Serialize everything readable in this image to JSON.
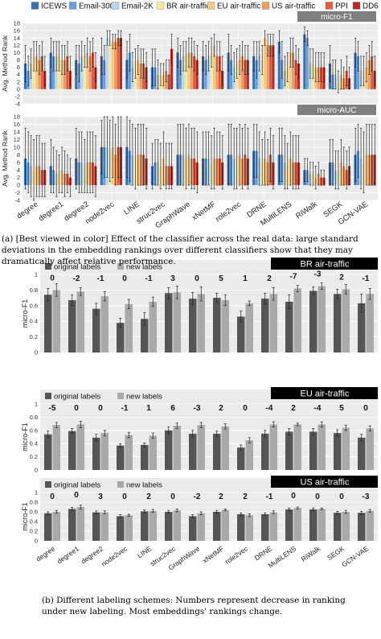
{
  "chart_data": [
    {
      "type": "bar",
      "title": "micro-F1",
      "ylabel": "Avg. Method Rank",
      "ylim": [
        -4,
        18
      ],
      "yticks": [
        -4,
        -2,
        0,
        2,
        4,
        6,
        8,
        10,
        12,
        14,
        16,
        18
      ],
      "grid": true,
      "legend_position": "top",
      "categories": [
        "degree",
        "degree1",
        "degree2",
        "node2vec",
        "LINE",
        "struc2vec",
        "GraphWave",
        "xNetMF",
        "role2vec",
        "DRNE",
        "MultiLENS",
        "RiWalk",
        "SEGK",
        "GCN-VAE"
      ],
      "series": [
        {
          "name": "ICEWS",
          "color": "#3a6fb0",
          "values": [
            7,
            10,
            8,
            9,
            8,
            6,
            10,
            9,
            10,
            9,
            13,
            15,
            7,
            10
          ],
          "errors": [
            5,
            4,
            4,
            5,
            5,
            5,
            4,
            4,
            5,
            4,
            3,
            2,
            5,
            4
          ]
        },
        {
          "name": "Email-300",
          "color": "#6b9fd4",
          "values": [
            5,
            9,
            7,
            8,
            10,
            6,
            8,
            8,
            8,
            8,
            8,
            14,
            4,
            9
          ],
          "errors": [
            4,
            4,
            5,
            4,
            5,
            5,
            4,
            4,
            4,
            5,
            5,
            2,
            4,
            4
          ]
        },
        {
          "name": "Email-2K",
          "color": "#b8d6ee",
          "values": [
            7,
            9,
            9,
            14,
            6,
            4,
            9,
            9,
            6,
            9,
            5,
            7,
            4,
            5
          ],
          "errors": [
            4,
            4,
            4,
            2,
            4,
            4,
            4,
            4,
            4,
            4,
            4,
            4,
            4,
            4
          ]
        },
        {
          "name": "BR air-traffic",
          "color": "#f4e7a3",
          "values": [
            9,
            9,
            9,
            14,
            7,
            4,
            9,
            10,
            7,
            8,
            6,
            7,
            2,
            5
          ],
          "errors": [
            4,
            4,
            3,
            2,
            4,
            3,
            4,
            4,
            4,
            4,
            4,
            4,
            3,
            4
          ]
        },
        {
          "name": "EU air-traffic",
          "color": "#f1c88c",
          "values": [
            9,
            8,
            10,
            13,
            8,
            4,
            10,
            12,
            8,
            14,
            10,
            6,
            4,
            6
          ],
          "errors": [
            4,
            4,
            4,
            2,
            4,
            3,
            4,
            3,
            4,
            2,
            4,
            4,
            4,
            4
          ]
        },
        {
          "name": "US air-traffic",
          "color": "#ea9f5e",
          "values": [
            8,
            8,
            9,
            13,
            7,
            5,
            10,
            9,
            9,
            12,
            10,
            6,
            3,
            8
          ],
          "errors": [
            4,
            4,
            4,
            2,
            4,
            3,
            4,
            4,
            4,
            3,
            4,
            4,
            3,
            4
          ]
        },
        {
          "name": "PPI",
          "color": "#e05a3c",
          "values": [
            9,
            9,
            10,
            14,
            7,
            4,
            9,
            9,
            8,
            12,
            8,
            6,
            5,
            9
          ],
          "errors": [
            4,
            4,
            4,
            2,
            4,
            4,
            4,
            4,
            4,
            3,
            4,
            4,
            4,
            4
          ]
        },
        {
          "name": "DD6",
          "color": "#b52a24",
          "values": [
            5,
            5,
            6,
            14,
            6,
            11,
            8,
            5,
            8,
            12,
            7,
            6,
            3,
            5
          ],
          "errors": [
            4,
            4,
            4,
            2,
            4,
            4,
            4,
            4,
            4,
            3,
            4,
            4,
            3,
            4
          ]
        }
      ]
    },
    {
      "type": "bar",
      "title": "micro-AUC",
      "ylabel": "Avg. Method Rank",
      "ylim": [
        -4,
        18
      ],
      "yticks": [
        -4,
        -2,
        0,
        2,
        4,
        6,
        8,
        10,
        12,
        14,
        16,
        18
      ],
      "grid": true,
      "categories": [
        "degree",
        "degree1",
        "degree2",
        "node2vec",
        "LINE",
        "struc2vec",
        "GraphWave",
        "xNetMF",
        "role2vec",
        "DRNE",
        "MultiLENS",
        "RiWalk",
        "SEGK",
        "GCN-VAE"
      ],
      "series": [
        {
          "name": "ICEWS",
          "color": "#3a6fb0",
          "values": [
            7,
            5,
            7,
            10,
            10,
            5,
            8,
            7,
            8,
            9,
            8,
            4,
            6,
            8
          ],
          "errors": [
            8,
            7,
            8,
            7,
            8,
            6,
            8,
            7,
            8,
            7,
            7,
            3,
            6,
            7
          ]
        },
        {
          "name": "Email-300",
          "color": "#6b9fd4",
          "values": [
            6,
            4,
            6,
            10,
            9,
            6,
            8,
            7,
            8,
            9,
            8,
            4,
            6,
            9
          ],
          "errors": [
            8,
            6,
            8,
            8,
            8,
            6,
            8,
            7,
            8,
            7,
            7,
            3,
            6,
            7
          ]
        },
        {
          "name": "Email-2K",
          "color": "#b8d6ee",
          "values": [
            5,
            3,
            6,
            10,
            8,
            6,
            8,
            7,
            7,
            7,
            6,
            3,
            4,
            7
          ],
          "errors": [
            8,
            6,
            8,
            8,
            8,
            6,
            8,
            7,
            8,
            7,
            7,
            3,
            5,
            8
          ]
        },
        {
          "name": "BR air-traffic",
          "color": "#f4e7a3",
          "values": [
            4,
            3,
            5,
            9,
            7,
            5,
            7,
            6,
            7,
            6,
            5,
            3,
            4,
            6
          ],
          "errors": [
            8,
            5,
            7,
            8,
            8,
            6,
            8,
            7,
            8,
            6,
            6,
            3,
            5,
            8
          ]
        },
        {
          "name": "EU air-traffic",
          "color": "#f1c88c",
          "values": [
            5,
            4,
            6,
            10,
            8,
            7,
            8,
            7,
            8,
            7,
            7,
            2,
            6,
            8
          ],
          "errors": [
            8,
            6,
            8,
            8,
            8,
            7,
            8,
            8,
            8,
            7,
            7,
            3,
            6,
            8
          ]
        },
        {
          "name": "US air-traffic",
          "color": "#ea9f5e",
          "values": [
            5,
            3,
            6,
            8,
            8,
            5,
            7,
            7,
            7,
            6,
            6,
            3,
            5,
            8
          ],
          "errors": [
            8,
            6,
            8,
            8,
            8,
            6,
            8,
            7,
            8,
            6,
            7,
            3,
            5,
            8
          ]
        },
        {
          "name": "PPI",
          "color": "#e05a3c",
          "values": [
            4,
            3,
            6,
            10,
            8,
            5,
            7,
            7,
            8,
            8,
            6,
            2,
            4,
            8
          ],
          "errors": [
            7,
            5,
            8,
            8,
            8,
            6,
            8,
            7,
            8,
            7,
            7,
            2,
            5,
            8
          ]
        },
        {
          "name": "DD6",
          "color": "#b52a24",
          "values": [
            4,
            2,
            5,
            10,
            7,
            5,
            6,
            6,
            7,
            6,
            6,
            2,
            5,
            8
          ],
          "errors": [
            7,
            5,
            8,
            8,
            8,
            6,
            8,
            7,
            8,
            7,
            7,
            2,
            5,
            8
          ]
        }
      ]
    },
    {
      "type": "bar",
      "title": "BR air-traffic",
      "ylabel": "micro-F1",
      "ylim": [
        0,
        1
      ],
      "yticks": [
        "0",
        "0.2",
        "0.4",
        "0.6",
        "0.8",
        "1"
      ],
      "grid": true,
      "legend_position": "top-left",
      "categories": [
        "degree",
        "degree1",
        "degree2",
        "node2vec",
        "LINE",
        "struc2vec",
        "GraphWave",
        "xNetMF",
        "role2vec",
        "DRNE",
        "MultiLENS",
        "RiWalk",
        "SEGK",
        "GCN-VAE"
      ],
      "series": [
        {
          "name": "original labels",
          "color": "#555555",
          "values": [
            0.74,
            0.67,
            0.56,
            0.38,
            0.43,
            0.76,
            0.69,
            0.7,
            0.46,
            0.69,
            0.65,
            0.79,
            0.75,
            0.63
          ],
          "errors": [
            0.08,
            0.07,
            0.07,
            0.06,
            0.08,
            0.07,
            0.08,
            0.06,
            0.07,
            0.07,
            0.09,
            0.05,
            0.06,
            0.12
          ]
        },
        {
          "name": "new labels",
          "color": "#a9a9a9",
          "values": [
            0.8,
            0.78,
            0.72,
            0.62,
            0.65,
            0.77,
            0.75,
            0.67,
            0.63,
            0.75,
            0.82,
            0.85,
            0.81,
            0.75
          ]
        },
        {
          "name": "",
          "values": [
            0.08,
            0.05,
            0.06,
            0.06,
            0.06,
            0.08,
            0.09,
            0.07,
            0.03,
            0.08,
            0.04,
            0.04,
            0.06,
            0.07
          ]
        }
      ],
      "annotations": [
        "0",
        "-2",
        "-1",
        "0",
        "-1",
        "3",
        "0",
        "5",
        "1",
        "2",
        "-7",
        "-3",
        "2",
        "-1"
      ]
    },
    {
      "type": "bar",
      "title": "EU air-traffic",
      "ylabel": "micro-F1",
      "ylim": [
        0,
        1
      ],
      "yticks": [
        "0",
        "0.2",
        "0.4",
        "0.6",
        "0.8",
        "1"
      ],
      "grid": true,
      "legend_position": "top-left",
      "categories": [
        "degree",
        "degree1",
        "degree2",
        "node2vec",
        "LINE",
        "struc2vec",
        "GraphWave",
        "xNetMF",
        "role2vec",
        "DRNE",
        "MultiLENS",
        "RiWalk",
        "SEGK",
        "GCN-VAE"
      ],
      "series": [
        {
          "name": "original labels",
          "color": "#555555",
          "values": [
            0.54,
            0.59,
            0.49,
            0.37,
            0.38,
            0.6,
            0.55,
            0.55,
            0.34,
            0.55,
            0.58,
            0.58,
            0.56,
            0.49
          ],
          "errors": [
            0.05,
            0.04,
            0.05,
            0.03,
            0.03,
            0.05,
            0.05,
            0.04,
            0.04,
            0.05,
            0.05,
            0.05,
            0.05,
            0.05
          ]
        },
        {
          "name": "new labels",
          "color": "#a9a9a9",
          "values": [
            0.68,
            0.69,
            0.56,
            0.53,
            0.52,
            0.67,
            0.68,
            0.66,
            0.45,
            0.69,
            0.69,
            0.69,
            0.64,
            0.63
          ],
          "errors": [
            0.04,
            0.05,
            0.04,
            0.04,
            0.04,
            0.04,
            0.04,
            0.04,
            0.04,
            0.04,
            0.02,
            0.04,
            0.04,
            0.04
          ]
        }
      ],
      "annotations": [
        "-5",
        "0",
        "0",
        "-1",
        "1",
        "6",
        "-3",
        "2",
        "0",
        "-4",
        "2",
        "-4",
        "5",
        "0"
      ]
    },
    {
      "type": "bar",
      "title": "US air-traffic",
      "ylabel": "micro-F1",
      "ylim": [
        0,
        1
      ],
      "yticks": [
        "0",
        "0.2",
        "0.4",
        "0.6",
        "0.8",
        "1"
      ],
      "grid": true,
      "legend_position": "top-left",
      "categories": [
        "degree",
        "degree1",
        "degree2",
        "node2vec",
        "LINE",
        "struc2vec",
        "GraphWave",
        "xNetMF",
        "role2vec",
        "DRNE",
        "MultiLENS",
        "RiWalk",
        "SEGK",
        "GCN-VAE"
      ],
      "series": [
        {
          "name": "original labels",
          "color": "#555555",
          "values": [
            0.57,
            0.66,
            0.59,
            0.51,
            0.61,
            0.6,
            0.51,
            0.6,
            0.55,
            0.55,
            0.65,
            0.65,
            0.58,
            0.58
          ],
          "errors": [
            0.03,
            0.03,
            0.03,
            0.03,
            0.03,
            0.03,
            0.03,
            0.03,
            0.03,
            0.03,
            0.03,
            0.03,
            0.03,
            0.03
          ]
        },
        {
          "name": "new labels",
          "color": "#a9a9a9",
          "values": [
            0.6,
            0.7,
            0.59,
            0.53,
            0.62,
            0.63,
            0.57,
            0.64,
            0.53,
            0.59,
            0.68,
            0.66,
            0.6,
            0.62
          ],
          "errors": [
            0.03,
            0.04,
            0.03,
            0.02,
            0.03,
            0.03,
            0.03,
            0.02,
            0.03,
            0.03,
            0.02,
            0.02,
            0.03,
            0.03
          ]
        }
      ],
      "annotations": [
        "0",
        "0",
        "3",
        "0",
        "2",
        "0",
        "-2",
        "2",
        "2",
        "-1",
        "0",
        "0",
        "0",
        "-3"
      ]
    }
  ],
  "captions": {
    "a_label": "(a)",
    "a_text": "[Best viewed in color] Effect of the classifier across the real data: large standard deviations in the embedding rankings over different classifiers show that they may dramatically affect relative performance.",
    "b_label": "(b)",
    "b_text": "Different labeling schemes: Numbers represent decrease in ranking under new labeling. Most embeddings' rankings change."
  }
}
